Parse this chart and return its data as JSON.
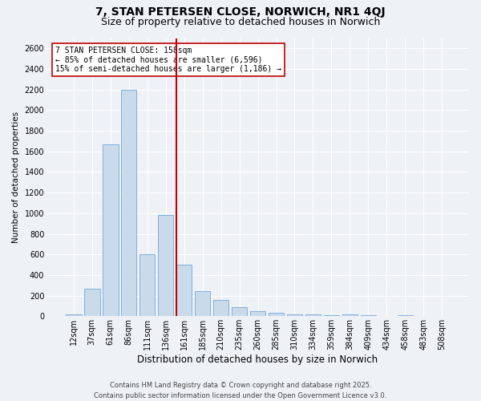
{
  "title": "7, STAN PETERSEN CLOSE, NORWICH, NR1 4QJ",
  "subtitle": "Size of property relative to detached houses in Norwich",
  "xlabel": "Distribution of detached houses by size in Norwich",
  "ylabel": "Number of detached properties",
  "categories": [
    "12sqm",
    "37sqm",
    "61sqm",
    "86sqm",
    "111sqm",
    "136sqm",
    "161sqm",
    "185sqm",
    "210sqm",
    "235sqm",
    "260sqm",
    "285sqm",
    "310sqm",
    "334sqm",
    "359sqm",
    "384sqm",
    "409sqm",
    "434sqm",
    "458sqm",
    "483sqm",
    "508sqm"
  ],
  "values": [
    20,
    270,
    1670,
    2200,
    600,
    980,
    500,
    240,
    160,
    90,
    50,
    30,
    20,
    15,
    10,
    15,
    8,
    5,
    10,
    3,
    2
  ],
  "bar_color": "#c9daea",
  "bar_edge_color": "#5b9bd5",
  "highlight_index": 6,
  "highlight_color": "#c00000",
  "annotation_line1": "7 STAN PETERSEN CLOSE: 158sqm",
  "annotation_line2": "← 85% of detached houses are smaller (6,596)",
  "annotation_line3": "15% of semi-detached houses are larger (1,186) →",
  "annotation_box_color": "#ffffff",
  "annotation_box_edgecolor": "#c00000",
  "ylim": [
    0,
    2700
  ],
  "yticks": [
    0,
    200,
    400,
    600,
    800,
    1000,
    1200,
    1400,
    1600,
    1800,
    2000,
    2200,
    2400,
    2600
  ],
  "background_color": "#eef2f7",
  "plot_background": "#eef2f7",
  "grid_color": "#ffffff",
  "footer_line1": "Contains HM Land Registry data © Crown copyright and database right 2025.",
  "footer_line2": "Contains public sector information licensed under the Open Government Licence v3.0.",
  "title_fontsize": 10,
  "subtitle_fontsize": 9,
  "xlabel_fontsize": 8.5,
  "ylabel_fontsize": 7.5,
  "tick_fontsize": 7,
  "annot_fontsize": 7,
  "footer_fontsize": 6
}
